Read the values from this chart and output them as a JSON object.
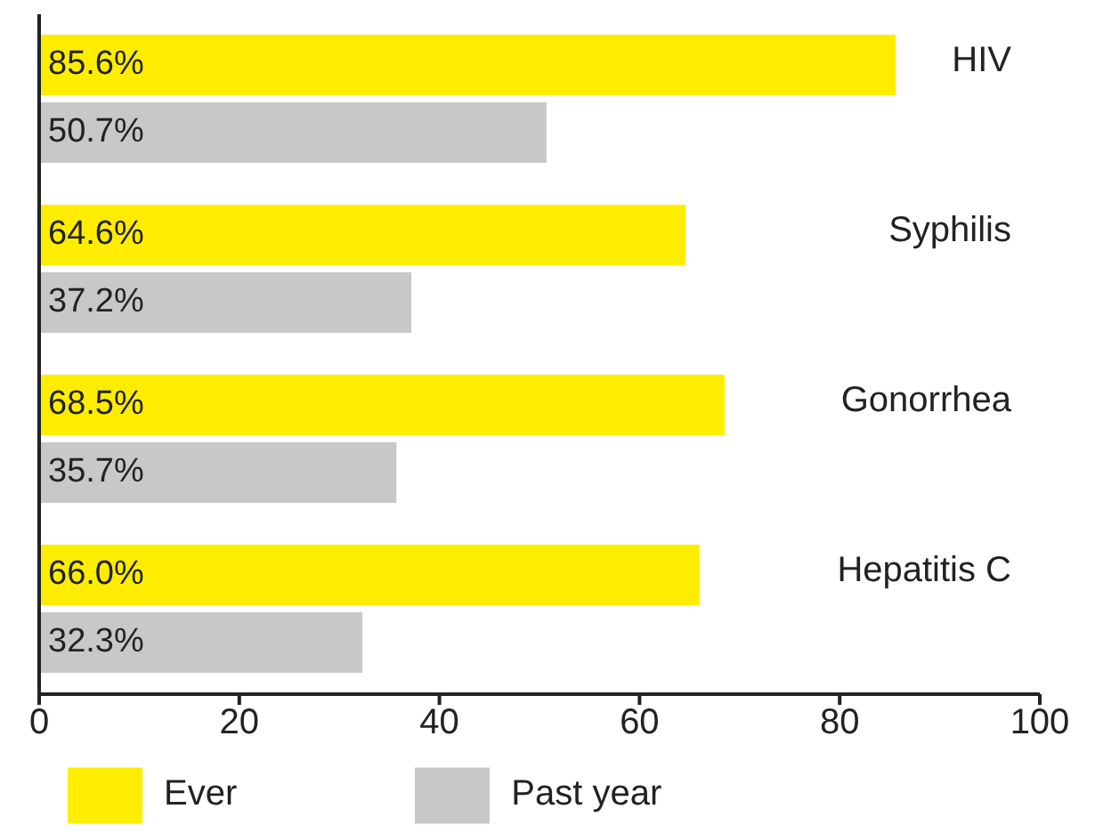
{
  "chart_data": {
    "type": "bar",
    "orientation": "horizontal",
    "categories": [
      "HIV",
      "Syphilis",
      "Gonorrhea",
      "Hepatitis C"
    ],
    "series": [
      {
        "name": "Ever",
        "color": "#ffed00",
        "values": [
          85.6,
          64.6,
          68.5,
          66.0
        ],
        "value_labels": [
          "85.6%",
          "64.6%",
          "68.5%",
          "66.0%"
        ]
      },
      {
        "name": "Past year",
        "color": "#c8c8c8",
        "values": [
          50.7,
          37.2,
          35.7,
          32.3
        ],
        "value_labels": [
          "50.7%",
          "37.2%",
          "35.7%",
          "32.3%"
        ]
      }
    ],
    "xlim": [
      0,
      100
    ],
    "xticks": [
      0,
      20,
      40,
      60,
      80,
      100
    ],
    "grid": false,
    "legend": "bottom left"
  }
}
